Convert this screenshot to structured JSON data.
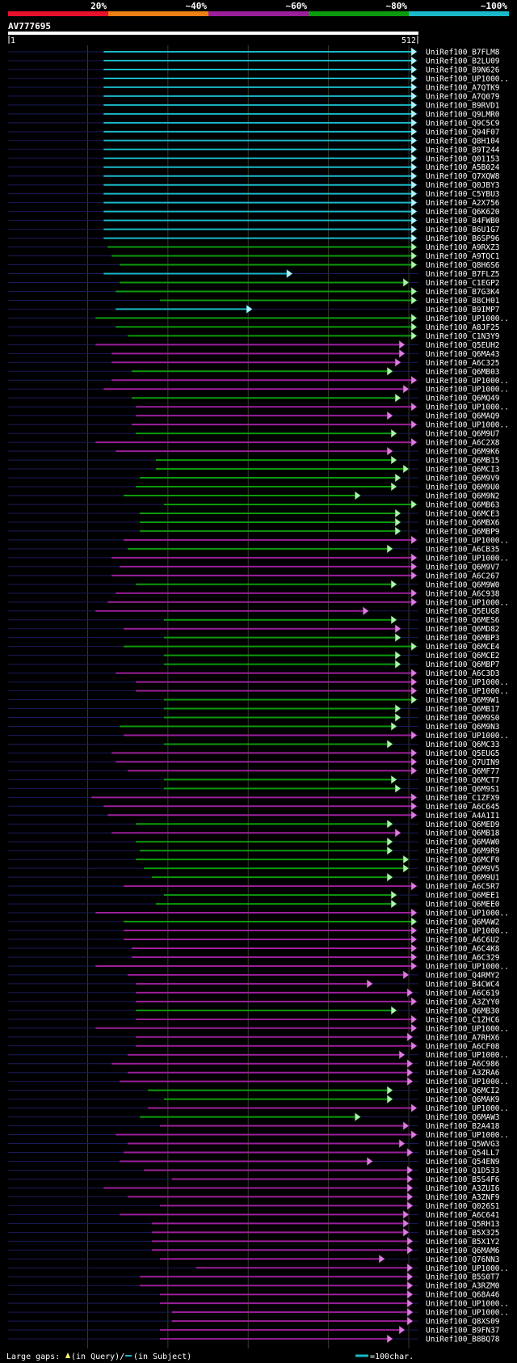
{
  "chart_data": {
    "type": "alignment",
    "title": "AV777695",
    "scale": {
      "start_label": "1",
      "end_label": "512",
      "query_length": 512
    },
    "identity_legend": [
      {
        "label": "20%",
        "color": "#e8102a"
      },
      {
        "label": "~40%",
        "color": "#ee7f14"
      },
      {
        "label": "~60%",
        "color": "#9b1f9b"
      },
      {
        "label": "~80%",
        "color": "#0c9a0c"
      },
      {
        "label": "~100%",
        "color": "#1ab8c8"
      }
    ],
    "footer": {
      "large_gaps_label": "Large gaps:",
      "in_query": "(in Query)/",
      "in_subject": "(in Subject)",
      "bar_note": "=100char."
    },
    "hits": [
      {
        "name": "UniRef100_B7FLM8",
        "start": 120,
        "end": 510,
        "cls": 4
      },
      {
        "name": "UniRef100_B2LU09",
        "start": 120,
        "end": 510,
        "cls": 4
      },
      {
        "name": "UniRef100_B9N626",
        "start": 120,
        "end": 510,
        "cls": 4
      },
      {
        "name": "UniRef100_UP1000..",
        "start": 120,
        "end": 510,
        "cls": 4
      },
      {
        "name": "UniRef100_A7QTK9",
        "start": 120,
        "end": 510,
        "cls": 4
      },
      {
        "name": "UniRef100_A7Q079",
        "start": 120,
        "end": 510,
        "cls": 4
      },
      {
        "name": "UniRef100_B9RVD1",
        "start": 120,
        "end": 510,
        "cls": 4
      },
      {
        "name": "UniRef100_Q9LMR0",
        "start": 120,
        "end": 510,
        "cls": 4
      },
      {
        "name": "UniRef100_Q9C5C9",
        "start": 120,
        "end": 510,
        "cls": 4
      },
      {
        "name": "UniRef100_Q94F07",
        "start": 120,
        "end": 510,
        "cls": 4
      },
      {
        "name": "UniRef100_Q8H104",
        "start": 120,
        "end": 510,
        "cls": 4
      },
      {
        "name": "UniRef100_B9T244",
        "start": 120,
        "end": 510,
        "cls": 4
      },
      {
        "name": "UniRef100_Q01153",
        "start": 120,
        "end": 510,
        "cls": 4
      },
      {
        "name": "UniRef100_A5B024",
        "start": 120,
        "end": 510,
        "cls": 4
      },
      {
        "name": "UniRef100_Q7XQW8",
        "start": 120,
        "end": 510,
        "cls": 4
      },
      {
        "name": "UniRef100_Q0JBY3",
        "start": 120,
        "end": 510,
        "cls": 4
      },
      {
        "name": "UniRef100_C5YBU3",
        "start": 120,
        "end": 510,
        "cls": 4
      },
      {
        "name": "UniRef100_A2X756",
        "start": 120,
        "end": 510,
        "cls": 4
      },
      {
        "name": "UniRef100_Q6K620",
        "start": 120,
        "end": 510,
        "cls": 4
      },
      {
        "name": "UniRef100_B4FWB0",
        "start": 120,
        "end": 510,
        "cls": 4
      },
      {
        "name": "UniRef100_B6U1G7",
        "start": 120,
        "end": 510,
        "cls": 4
      },
      {
        "name": "UniRef100_B6SP96",
        "start": 120,
        "end": 510,
        "cls": 4
      },
      {
        "name": "UniRef100_A9RXZ3",
        "start": 125,
        "end": 510,
        "cls": 3
      },
      {
        "name": "UniRef100_A9TQC1",
        "start": 130,
        "end": 510,
        "cls": 3
      },
      {
        "name": "UniRef100_Q8H6S6",
        "start": 140,
        "end": 510,
        "cls": 3
      },
      {
        "name": "UniRef100_B7FLZ5",
        "start": 120,
        "end": 355,
        "cls": 4
      },
      {
        "name": "UniRef100_C1EGP2",
        "start": 140,
        "end": 500,
        "cls": 3
      },
      {
        "name": "UniRef100_B7G3K4",
        "start": 135,
        "end": 510,
        "cls": 3
      },
      {
        "name": "UniRef100_B8CH01",
        "start": 190,
        "end": 510,
        "cls": 3
      },
      {
        "name": "UniRef100_B9IMP7",
        "start": 135,
        "end": 305,
        "cls": 4
      },
      {
        "name": "UniRef100_UP1000..",
        "start": 110,
        "end": 510,
        "cls": 3
      },
      {
        "name": "UniRef100_A8JF25",
        "start": 135,
        "end": 510,
        "cls": 3
      },
      {
        "name": "UniRef100_C1N3Y9",
        "start": 150,
        "end": 510,
        "cls": 3
      },
      {
        "name": "UniRef100_Q5EUH2",
        "start": 110,
        "end": 495,
        "cls": 2
      },
      {
        "name": "UniRef100_Q6MA43",
        "start": 130,
        "end": 495,
        "cls": 2
      },
      {
        "name": "UniRef100_A6C325",
        "start": 130,
        "end": 490,
        "cls": 2
      },
      {
        "name": "UniRef100_Q6MB03",
        "start": 155,
        "end": 480,
        "cls": 3
      },
      {
        "name": "UniRef100_UP1000..",
        "start": 130,
        "end": 510,
        "cls": 2
      },
      {
        "name": "UniRef100_UP1000..",
        "start": 120,
        "end": 500,
        "cls": 2
      },
      {
        "name": "UniRef100_Q6MQ49",
        "start": 155,
        "end": 490,
        "cls": 3
      },
      {
        "name": "UniRef100_UP1000..",
        "start": 160,
        "end": 510,
        "cls": 2
      },
      {
        "name": "UniRef100_Q6MAQ9",
        "start": 160,
        "end": 480,
        "cls": 2
      },
      {
        "name": "UniRef100_UP1000..",
        "start": 155,
        "end": 510,
        "cls": 2
      },
      {
        "name": "UniRef100_Q6M9U7",
        "start": 160,
        "end": 485,
        "cls": 3
      },
      {
        "name": "UniRef100_A6C2X8",
        "start": 110,
        "end": 510,
        "cls": 2
      },
      {
        "name": "UniRef100_Q6M9K6",
        "start": 135,
        "end": 480,
        "cls": 2
      },
      {
        "name": "UniRef100_Q6MB15",
        "start": 185,
        "end": 485,
        "cls": 3
      },
      {
        "name": "UniRef100_Q6MCI3",
        "start": 185,
        "end": 500,
        "cls": 3
      },
      {
        "name": "UniRef100_Q6M9V9",
        "start": 165,
        "end": 490,
        "cls": 3
      },
      {
        "name": "UniRef100_Q6M9U0",
        "start": 160,
        "end": 485,
        "cls": 3
      },
      {
        "name": "UniRef100_Q6M9N2",
        "start": 145,
        "end": 440,
        "cls": 3
      },
      {
        "name": "UniRef100_Q6MB63",
        "start": 195,
        "end": 510,
        "cls": 3
      },
      {
        "name": "UniRef100_Q6MCE3",
        "start": 165,
        "end": 490,
        "cls": 3
      },
      {
        "name": "UniRef100_Q6MBX6",
        "start": 165,
        "end": 490,
        "cls": 3
      },
      {
        "name": "UniRef100_Q6MBP9",
        "start": 165,
        "end": 490,
        "cls": 3
      },
      {
        "name": "UniRef100_UP1000..",
        "start": 145,
        "end": 510,
        "cls": 2
      },
      {
        "name": "UniRef100_A6CB35",
        "start": 150,
        "end": 480,
        "cls": 3
      },
      {
        "name": "UniRef100_UP1000..",
        "start": 130,
        "end": 510,
        "cls": 2
      },
      {
        "name": "UniRef100_Q6M9V7",
        "start": 140,
        "end": 510,
        "cls": 2
      },
      {
        "name": "UniRef100_A6C267",
        "start": 130,
        "end": 510,
        "cls": 2
      },
      {
        "name": "UniRef100_Q6M9W0",
        "start": 160,
        "end": 485,
        "cls": 3
      },
      {
        "name": "UniRef100_A6C938",
        "start": 135,
        "end": 510,
        "cls": 2
      },
      {
        "name": "UniRef100_UP1000..",
        "start": 125,
        "end": 510,
        "cls": 2
      },
      {
        "name": "UniRef100_Q5EUG8",
        "start": 110,
        "end": 450,
        "cls": 2
      },
      {
        "name": "UniRef100_Q6MES6",
        "start": 195,
        "end": 485,
        "cls": 3
      },
      {
        "name": "UniRef100_Q6MD82",
        "start": 145,
        "end": 490,
        "cls": 2
      },
      {
        "name": "UniRef100_Q6MBP3",
        "start": 195,
        "end": 490,
        "cls": 3
      },
      {
        "name": "UniRef100_Q6MCE4",
        "start": 145,
        "end": 510,
        "cls": 3
      },
      {
        "name": "UniRef100_Q6MCE2",
        "start": 195,
        "end": 490,
        "cls": 3
      },
      {
        "name": "UniRef100_Q6MBP7",
        "start": 195,
        "end": 490,
        "cls": 3
      },
      {
        "name": "UniRef100_A6C3D3",
        "start": 135,
        "end": 510,
        "cls": 2
      },
      {
        "name": "UniRef100_UP1000..",
        "start": 160,
        "end": 510,
        "cls": 2
      },
      {
        "name": "UniRef100_UP1000..",
        "start": 160,
        "end": 510,
        "cls": 2
      },
      {
        "name": "UniRef100_Q6M9W1",
        "start": 195,
        "end": 510,
        "cls": 3
      },
      {
        "name": "UniRef100_Q6MB17",
        "start": 195,
        "end": 490,
        "cls": 3
      },
      {
        "name": "UniRef100_Q6M9S0",
        "start": 195,
        "end": 490,
        "cls": 3
      },
      {
        "name": "UniRef100_Q6M9N3",
        "start": 140,
        "end": 485,
        "cls": 3
      },
      {
        "name": "UniRef100_UP1000..",
        "start": 145,
        "end": 510,
        "cls": 2
      },
      {
        "name": "UniRef100_Q6MC33",
        "start": 195,
        "end": 480,
        "cls": 3
      },
      {
        "name": "UniRef100_Q5EUG5",
        "start": 130,
        "end": 510,
        "cls": 2
      },
      {
        "name": "UniRef100_Q7UIN9",
        "start": 135,
        "end": 510,
        "cls": 2
      },
      {
        "name": "UniRef100_Q6MF77",
        "start": 150,
        "end": 510,
        "cls": 2
      },
      {
        "name": "UniRef100_Q6MCT7",
        "start": 195,
        "end": 485,
        "cls": 3
      },
      {
        "name": "UniRef100_Q6M9S1",
        "start": 195,
        "end": 490,
        "cls": 3
      },
      {
        "name": "UniRef100_C1ZFX9",
        "start": 105,
        "end": 510,
        "cls": 2
      },
      {
        "name": "UniRef100_A6C645",
        "start": 120,
        "end": 510,
        "cls": 2
      },
      {
        "name": "UniRef100_A4A1I1",
        "start": 125,
        "end": 510,
        "cls": 2
      },
      {
        "name": "UniRef100_Q6MED9",
        "start": 160,
        "end": 480,
        "cls": 3
      },
      {
        "name": "UniRef100_Q6MB18",
        "start": 130,
        "end": 490,
        "cls": 2
      },
      {
        "name": "UniRef100_Q6MAW0",
        "start": 160,
        "end": 480,
        "cls": 3
      },
      {
        "name": "UniRef100_Q6M9R9",
        "start": 165,
        "end": 480,
        "cls": 3
      },
      {
        "name": "UniRef100_Q6MCF0",
        "start": 160,
        "end": 500,
        "cls": 3
      },
      {
        "name": "UniRef100_Q6M9V5",
        "start": 170,
        "end": 500,
        "cls": 3
      },
      {
        "name": "UniRef100_Q6M9U1",
        "start": 180,
        "end": 480,
        "cls": 3
      },
      {
        "name": "UniRef100_A6C5R7",
        "start": 145,
        "end": 510,
        "cls": 2
      },
      {
        "name": "UniRef100_Q6MEE1",
        "start": 195,
        "end": 485,
        "cls": 3
      },
      {
        "name": "UniRef100_Q6MEE0",
        "start": 185,
        "end": 485,
        "cls": 3
      },
      {
        "name": "UniRef100_UP1000..",
        "start": 110,
        "end": 510,
        "cls": 2
      },
      {
        "name": "UniRef100_Q6MAW2",
        "start": 145,
        "end": 510,
        "cls": 3
      },
      {
        "name": "UniRef100_UP1000..",
        "start": 145,
        "end": 510,
        "cls": 2
      },
      {
        "name": "UniRef100_A6C6U2",
        "start": 145,
        "end": 510,
        "cls": 2
      },
      {
        "name": "UniRef100_A6C4K8",
        "start": 155,
        "end": 510,
        "cls": 2
      },
      {
        "name": "UniRef100_A6C329",
        "start": 155,
        "end": 510,
        "cls": 2
      },
      {
        "name": "UniRef100_UP1000..",
        "start": 110,
        "end": 510,
        "cls": 2
      },
      {
        "name": "UniRef100_Q4RMY2",
        "start": 150,
        "end": 500,
        "cls": 2
      },
      {
        "name": "UniRef100_B4CWC4",
        "start": 160,
        "end": 455,
        "cls": 2
      },
      {
        "name": "UniRef100_A6C619",
        "start": 160,
        "end": 505,
        "cls": 2
      },
      {
        "name": "UniRef100_A3ZYY0",
        "start": 160,
        "end": 510,
        "cls": 2
      },
      {
        "name": "UniRef100_Q6MB30",
        "start": 160,
        "end": 485,
        "cls": 3
      },
      {
        "name": "UniRef100_C1ZHC6",
        "start": 160,
        "end": 510,
        "cls": 2
      },
      {
        "name": "UniRef100_UP1000..",
        "start": 110,
        "end": 510,
        "cls": 2
      },
      {
        "name": "UniRef100_A7RHX6",
        "start": 160,
        "end": 505,
        "cls": 2
      },
      {
        "name": "UniRef100_A6CF08",
        "start": 160,
        "end": 510,
        "cls": 2
      },
      {
        "name": "UniRef100_UP1000..",
        "start": 150,
        "end": 495,
        "cls": 2
      },
      {
        "name": "UniRef100_A6C986",
        "start": 130,
        "end": 505,
        "cls": 2
      },
      {
        "name": "UniRef100_A3ZRA6",
        "start": 150,
        "end": 505,
        "cls": 2
      },
      {
        "name": "UniRef100_UP1000..",
        "start": 140,
        "end": 505,
        "cls": 2
      },
      {
        "name": "UniRef100_Q6MCI2",
        "start": 175,
        "end": 480,
        "cls": 3
      },
      {
        "name": "UniRef100_Q6MAK9",
        "start": 195,
        "end": 480,
        "cls": 3
      },
      {
        "name": "UniRef100_UP1000..",
        "start": 175,
        "end": 510,
        "cls": 2
      },
      {
        "name": "UniRef100_Q6MAW3",
        "start": 165,
        "end": 440,
        "cls": 3
      },
      {
        "name": "UniRef100_B2A418",
        "start": 190,
        "end": 500,
        "cls": 2
      },
      {
        "name": "UniRef100_UP1000..",
        "start": 135,
        "end": 510,
        "cls": 2
      },
      {
        "name": "UniRef100_Q5WVG3",
        "start": 150,
        "end": 495,
        "cls": 2
      },
      {
        "name": "UniRef100_Q54LL7",
        "start": 145,
        "end": 505,
        "cls": 2
      },
      {
        "name": "UniRef100_Q54EN9",
        "start": 140,
        "end": 455,
        "cls": 2
      },
      {
        "name": "UniRef100_Q1D533",
        "start": 170,
        "end": 505,
        "cls": 2
      },
      {
        "name": "UniRef100_B5S4F6",
        "start": 205,
        "end": 505,
        "cls": 2
      },
      {
        "name": "UniRef100_A3ZUI6",
        "start": 120,
        "end": 505,
        "cls": 2
      },
      {
        "name": "UniRef100_A3ZNF9",
        "start": 150,
        "end": 505,
        "cls": 2
      },
      {
        "name": "UniRef100_Q026S1",
        "start": 190,
        "end": 505,
        "cls": 2
      },
      {
        "name": "UniRef100_A6C641",
        "start": 140,
        "end": 500,
        "cls": 2
      },
      {
        "name": "UniRef100_Q5RH13",
        "start": 180,
        "end": 500,
        "cls": 2
      },
      {
        "name": "UniRef100_B5X325",
        "start": 180,
        "end": 500,
        "cls": 2
      },
      {
        "name": "UniRef100_B5X1Y2",
        "start": 180,
        "end": 505,
        "cls": 2
      },
      {
        "name": "UniRef100_Q6MAM6",
        "start": 180,
        "end": 505,
        "cls": 2
      },
      {
        "name": "UniRef100_Q76NN3",
        "start": 190,
        "end": 470,
        "cls": 2
      },
      {
        "name": "UniRef100_UP1000..",
        "start": 235,
        "end": 505,
        "cls": 2
      },
      {
        "name": "UniRef100_B5S0T7",
        "start": 165,
        "end": 505,
        "cls": 2
      },
      {
        "name": "UniRef100_A3RZM0",
        "start": 165,
        "end": 505,
        "cls": 2
      },
      {
        "name": "UniRef100_Q68A46",
        "start": 190,
        "end": 505,
        "cls": 2
      },
      {
        "name": "UniRef100_UP1000..",
        "start": 190,
        "end": 505,
        "cls": 2
      },
      {
        "name": "UniRef100_UP1000..",
        "start": 205,
        "end": 505,
        "cls": 2
      },
      {
        "name": "UniRef100_Q8XS09",
        "start": 205,
        "end": 505,
        "cls": 2
      },
      {
        "name": "UniRef100_B9FN37",
        "start": 190,
        "end": 495,
        "cls": 2
      },
      {
        "name": "UniRef100_B8BQ78",
        "start": 190,
        "end": 480,
        "cls": 2
      }
    ]
  }
}
